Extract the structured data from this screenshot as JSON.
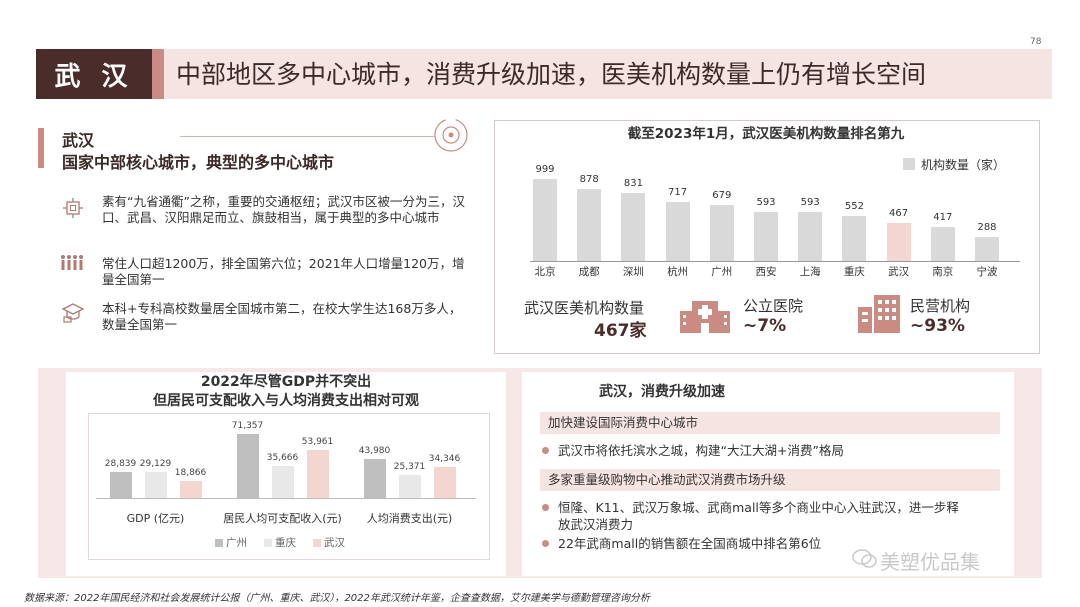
{
  "page_number": "78",
  "header": {
    "label": "武 汉",
    "title": "中部地区多中心城市，消费升级加速，医美机构数量上仍有增长空间"
  },
  "left_info": {
    "title": "武汉",
    "subtitle": "国家中部核心城市，典型的多中心城市",
    "bullets": [
      {
        "icon": "transport-hub-icon",
        "text": "素有“九省通衢”之称，重要的交通枢纽；武汉市区被一分为三，汉口、武昌、汉阳鼎足而立、旗鼓相当，属于典型的多中心城市"
      },
      {
        "icon": "population-icon",
        "text": "常住人口超1200万，排全国第六位；2021年人口增量120万，增量全国第一"
      },
      {
        "icon": "graduation-icon",
        "text": "本科+专科高校数量居全国城市第二，在校大学生达168万多人，数量全国第一"
      }
    ]
  },
  "ranking_panel": {
    "title": "截至2023年1月，武汉医美机构数量排名第九",
    "legend": "机构数量（家）",
    "stats": {
      "total_label": "武汉医美机构数量",
      "total_value": "467家",
      "public_label": "公立医院",
      "public_value": "~7%",
      "private_label": "民营机构",
      "private_value": "~93%"
    }
  },
  "consumption_panel": {
    "title": "武汉，消费升级加速",
    "sections": [
      {
        "heading": "加快建设国际消费中心城市",
        "items": [
          "武汉市将依托滨水之城，构建“大江大湖+消费”格局"
        ]
      },
      {
        "heading": "多家重量级购物中心推动武汉消费市场升级",
        "items": [
          "恒隆、K11、武汉万象城、武商mall等多个商业中心入驻武汉，进一步释放武汉消费力",
          "22年武商mall的销售额在全国商城中排名第6位"
        ]
      }
    ]
  },
  "gdp_panel": {
    "title_line1": "2022年尽管GDP并不突出",
    "title_line2": "但居民可支配收入与人均消费支出相对可观"
  },
  "colors": {
    "accent": "#c98b82",
    "dark": "#4a2c2a",
    "band": "#f5e4e2",
    "bar_gray": "#d9d9d9",
    "bar_light": "#e8e8e8",
    "highlight": "#f2d6cf"
  },
  "chart_data": [
    {
      "type": "bar",
      "title": "截至2023年1月，武汉医美机构数量排名第九",
      "categories": [
        "北京",
        "成都",
        "深圳",
        "杭州",
        "广州",
        "西安",
        "上海",
        "重庆",
        "武汉",
        "南京",
        "宁波"
      ],
      "series": [
        {
          "name": "机构数量（家）",
          "values": [
            999,
            878,
            831,
            717,
            679,
            593,
            593,
            552,
            467,
            417,
            288
          ]
        }
      ],
      "highlight_category": "武汉",
      "grid": false,
      "legend_position": "top-right"
    },
    {
      "type": "bar",
      "categories": [
        "GDP (亿元)",
        "居民人均可支配收入(元)",
        "人均消费支出(元)"
      ],
      "series": [
        {
          "name": "广州",
          "values": [
            "28,839",
            "71,357",
            "43,980"
          ]
        },
        {
          "name": "重庆",
          "values": [
            "29,129",
            "35,666",
            "25,371"
          ]
        },
        {
          "name": "武汉",
          "values": [
            "18,866",
            "53,961",
            "34,346"
          ]
        }
      ],
      "grid": false,
      "legend_position": "bottom"
    }
  ],
  "watermark": "美塑优品集",
  "footer": "数据来源：2022年国民经济和社会发展统计公报（广州、重庆、武汉），2022年武汉统计年鉴，企查查数据，艾尔建美学与德勤管理咨询分析"
}
